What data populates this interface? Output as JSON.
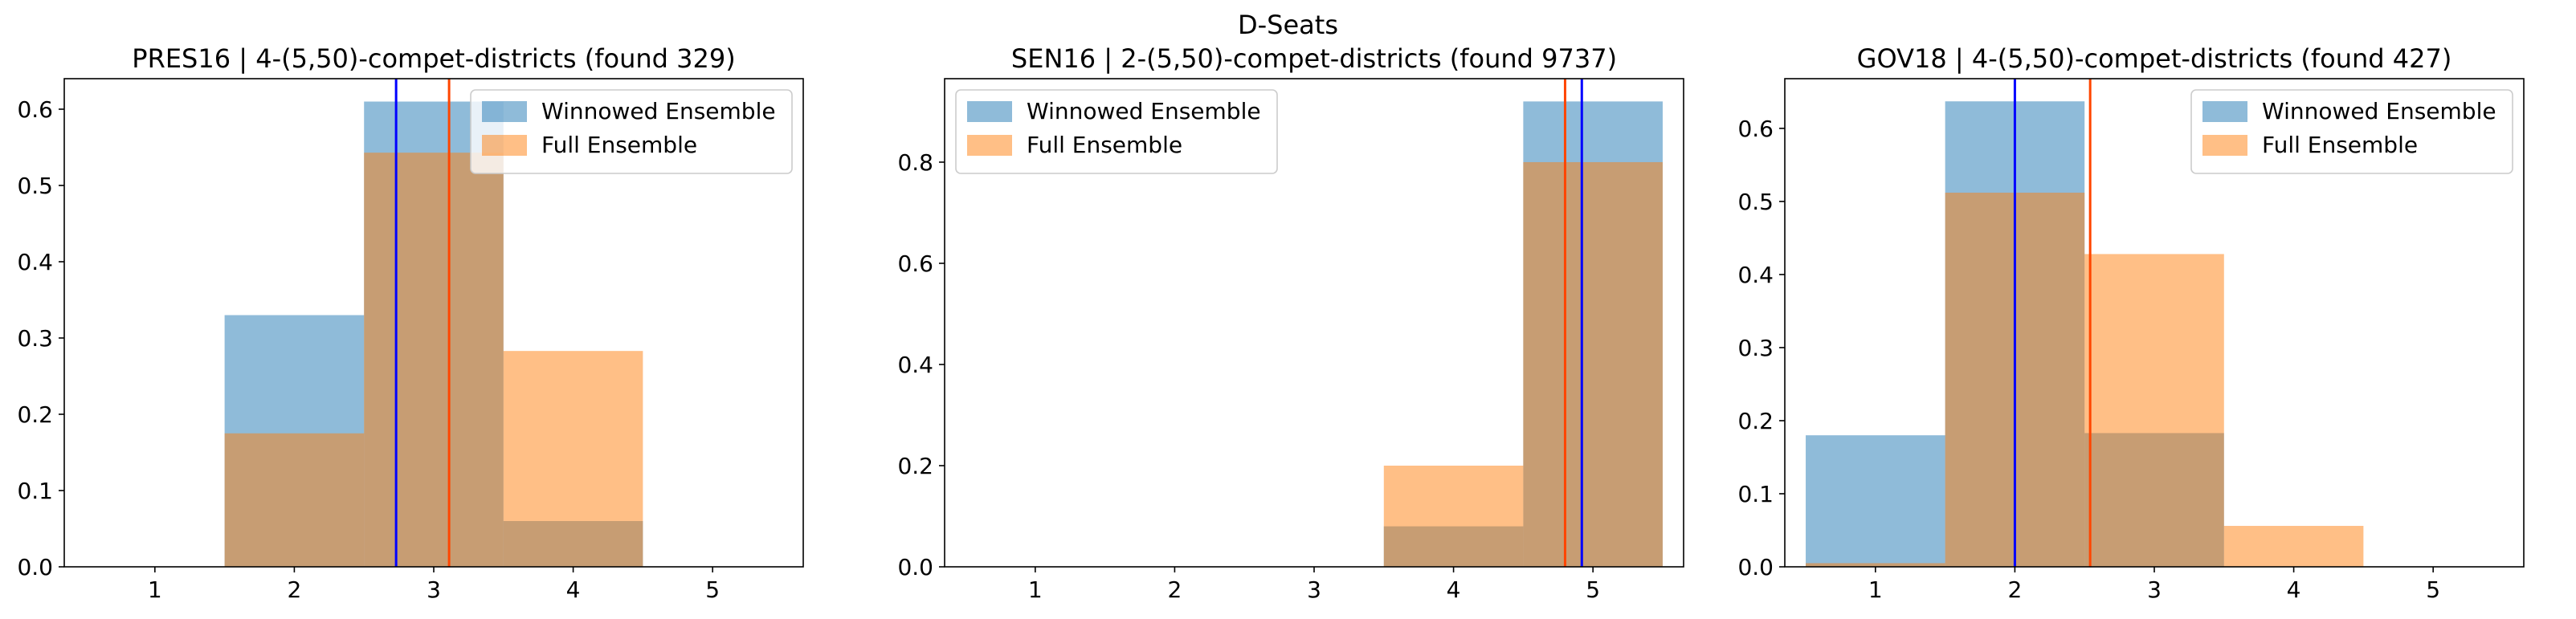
{
  "figure": {
    "suptitle": "D-Seats"
  },
  "chart_data": [
    {
      "type": "bar",
      "title": "PRES16 | 4-(5,50)-compet-districts (found 329)",
      "xlabel": "",
      "ylabel": "",
      "xlim": [
        0.35,
        5.65
      ],
      "ylim": [
        0,
        0.64
      ],
      "xticks": [
        1,
        2,
        3,
        4,
        5
      ],
      "yticks": [
        0.0,
        0.1,
        0.2,
        0.3,
        0.4,
        0.5,
        0.6
      ],
      "bins": [
        [
          1.5,
          2.5
        ],
        [
          2.5,
          3.5
        ],
        [
          3.5,
          4.5
        ]
      ],
      "series": [
        {
          "name": "Winnowed Ensemble",
          "color": "#1f77b4",
          "opacity": 0.5,
          "values": [
            0.33,
            0.61,
            0.06
          ]
        },
        {
          "name": "Full Ensemble",
          "color": "#ff7f0e",
          "opacity": 0.5,
          "values": [
            0.175,
            0.543,
            0.283
          ]
        }
      ],
      "vlines": [
        {
          "x": 2.73,
          "color": "#0000ff"
        },
        {
          "x": 3.11,
          "color": "#ff4500"
        }
      ],
      "legend": "upper right"
    },
    {
      "type": "bar",
      "title": "SEN16 | 2-(5,50)-compet-districts (found 9737)",
      "xlabel": "",
      "ylabel": "",
      "xlim": [
        0.35,
        5.65
      ],
      "ylim": [
        0,
        0.965
      ],
      "xticks": [
        1,
        2,
        3,
        4,
        5
      ],
      "yticks": [
        0.0,
        0.2,
        0.4,
        0.6,
        0.8
      ],
      "bins": [
        [
          3.5,
          4.5
        ],
        [
          4.5,
          5.5
        ]
      ],
      "series": [
        {
          "name": "Winnowed Ensemble",
          "color": "#1f77b4",
          "opacity": 0.5,
          "values": [
            0.08,
            0.92
          ]
        },
        {
          "name": "Full Ensemble",
          "color": "#ff7f0e",
          "opacity": 0.5,
          "values": [
            0.2,
            0.8
          ]
        }
      ],
      "vlines": [
        {
          "x": 4.92,
          "color": "#0000ff"
        },
        {
          "x": 4.8,
          "color": "#ff4500"
        }
      ],
      "legend": "upper left"
    },
    {
      "type": "bar",
      "title": "GOV18 | 4-(5,50)-compet-districts (found 427)",
      "xlabel": "",
      "ylabel": "",
      "xlim": [
        0.35,
        5.65
      ],
      "ylim": [
        0,
        0.668
      ],
      "xticks": [
        1,
        2,
        3,
        4,
        5
      ],
      "yticks": [
        0.0,
        0.1,
        0.2,
        0.3,
        0.4,
        0.5,
        0.6
      ],
      "bins": [
        [
          0.5,
          1.5
        ],
        [
          1.5,
          2.5
        ],
        [
          2.5,
          3.5
        ],
        [
          3.5,
          4.5
        ]
      ],
      "series": [
        {
          "name": "Winnowed Ensemble",
          "color": "#1f77b4",
          "opacity": 0.5,
          "values": [
            0.18,
            0.637,
            0.183,
            0.0
          ]
        },
        {
          "name": "Full Ensemble",
          "color": "#ff7f0e",
          "opacity": 0.5,
          "values": [
            0.005,
            0.512,
            0.428,
            0.056
          ]
        }
      ],
      "vlines": [
        {
          "x": 2.0,
          "color": "#0000ff"
        },
        {
          "x": 2.54,
          "color": "#ff4500"
        }
      ],
      "legend": "upper right"
    }
  ]
}
